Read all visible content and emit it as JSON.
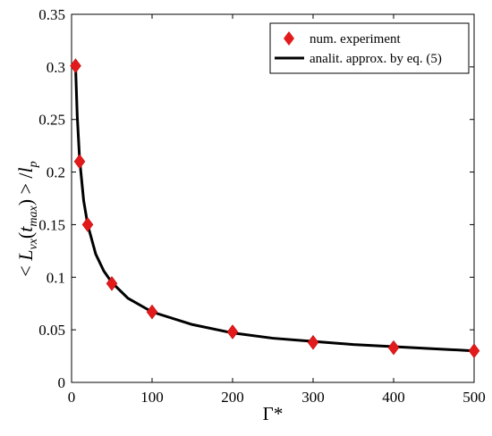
{
  "chart_data": {
    "type": "scatter",
    "title": "",
    "xlabel": "Γ*",
    "ylabel": "< L_vx(t_max) > / l_p",
    "xlim": [
      0,
      500
    ],
    "ylim": [
      0,
      0.35
    ],
    "xticks": [
      "0",
      "100",
      "200",
      "300",
      "400",
      "500"
    ],
    "yticks": [
      "0",
      "0.05",
      "0.1",
      "0.15",
      "0.2",
      "0.25",
      "0.3",
      "0.35"
    ],
    "grid": false,
    "legend_position": "top-right",
    "series": [
      {
        "name": "num. experiment",
        "kind": "markers",
        "marker": "diamond",
        "color": "#e31a1c",
        "x": [
          5,
          10,
          20,
          50,
          100,
          200,
          300,
          400,
          500
        ],
        "y": [
          0.301,
          0.21,
          0.15,
          0.094,
          0.067,
          0.048,
          0.038,
          0.033,
          0.03
        ]
      },
      {
        "name": "analit. approx. by eq. (5)",
        "kind": "line",
        "color": "#000000",
        "x": [
          5,
          7,
          10,
          15,
          20,
          30,
          40,
          50,
          70,
          100,
          150,
          200,
          250,
          300,
          350,
          400,
          450,
          500
        ],
        "y": [
          0.3,
          0.254,
          0.212,
          0.173,
          0.15,
          0.122,
          0.106,
          0.095,
          0.08,
          0.067,
          0.055,
          0.047,
          0.042,
          0.039,
          0.036,
          0.034,
          0.032,
          0.03
        ]
      }
    ]
  }
}
